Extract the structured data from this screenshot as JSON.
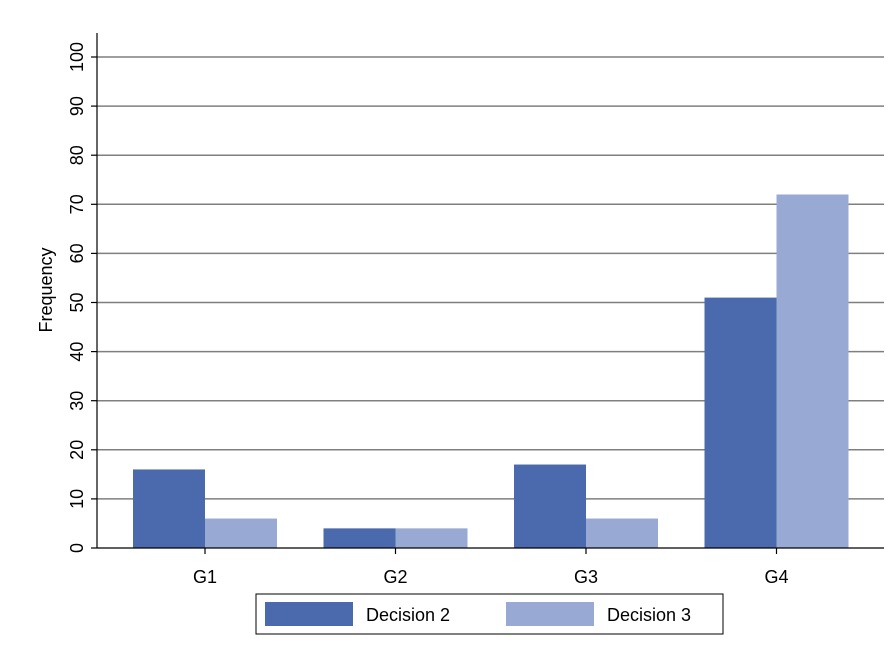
{
  "chart_data": {
    "type": "bar",
    "title": "",
    "xlabel": "",
    "ylabel": "Frequency",
    "categories": [
      "G1",
      "G2",
      "G3",
      "G4"
    ],
    "ylim": [
      0,
      100
    ],
    "yticks": [
      0,
      10,
      20,
      30,
      40,
      50,
      60,
      70,
      80,
      90,
      100
    ],
    "grid": true,
    "legend_position": "bottom",
    "series": [
      {
        "name": "Decision 2",
        "values": [
          16,
          4,
          17,
          51
        ],
        "color": "#4a6aad"
      },
      {
        "name": "Decision 3",
        "values": [
          6,
          4,
          6,
          72
        ],
        "color": "#98aad4"
      }
    ]
  }
}
